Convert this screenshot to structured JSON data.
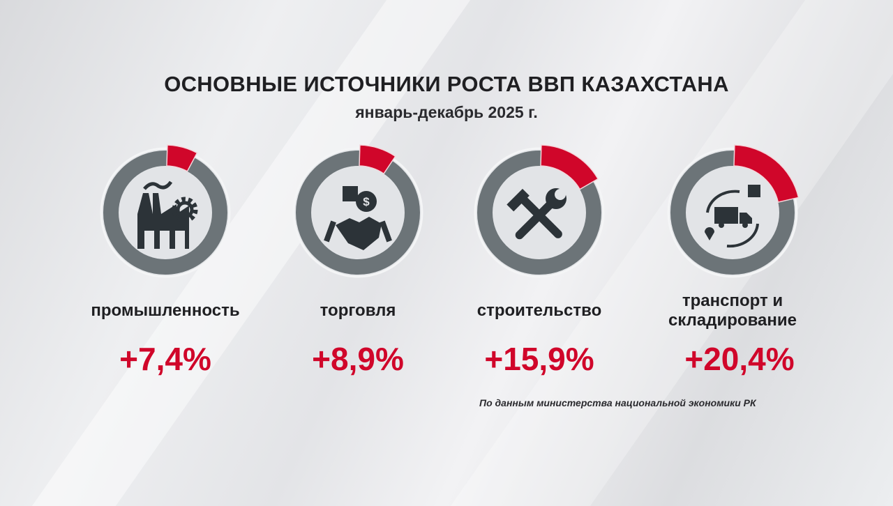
{
  "title": "ОСНОВНЫЕ ИСТОЧНИКИ РОСТА ВВП КАЗАХСТАНА",
  "subtitle": "январь-декабрь 2025 г.",
  "source": "По данным министерства национальной экономики РК",
  "colors": {
    "accent": "#d0062a",
    "ring": "#6c7478",
    "icon": "#2c3338"
  },
  "chart_data": {
    "type": "gauge",
    "title": "ОСНОВНЫЕ ИСТОЧНИКИ РОСТА ВВП КАЗАХСТАНА",
    "subtitle": "январь-декабрь 2025 г.",
    "categories": [
      "промышленность",
      "торговля",
      "строительство",
      "транспорт и складирование"
    ],
    "values": [
      7.4,
      8.9,
      15.9,
      20.4
    ],
    "value_labels": [
      "+7,4%",
      "+8,9%",
      "+15,9%",
      "+20,4%"
    ],
    "icons": [
      "factory-gear-icon",
      "handshake-money-icon",
      "hammer-wrench-icon",
      "truck-logistics-icon"
    ]
  }
}
